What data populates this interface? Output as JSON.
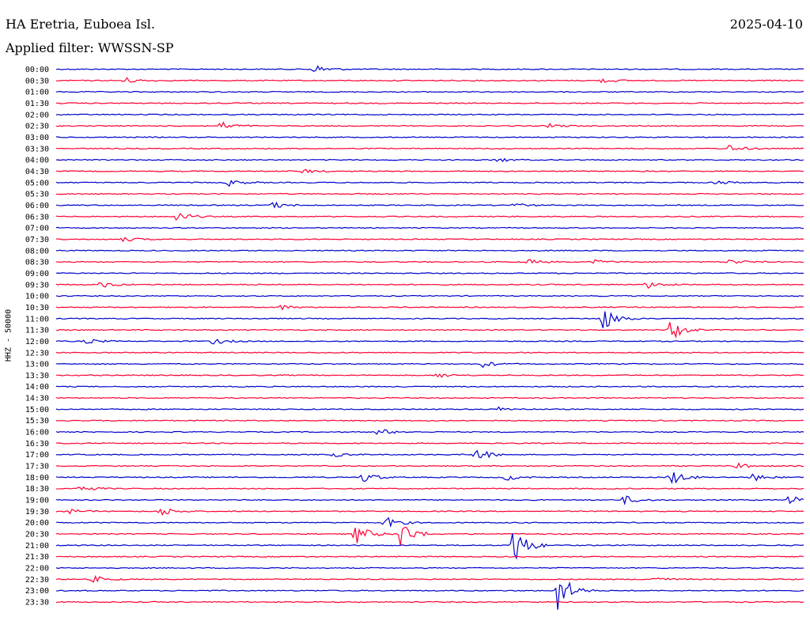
{
  "header": {
    "station": "HA Eretria, Euboea Isl.",
    "date": "2025-04-10",
    "filter": "Applied filter: WWSSN-SP"
  },
  "ylabel": "HHZ - 50000",
  "colors": {
    "even": "#0000cc",
    "odd": "#ff0033",
    "background": "#ffffff"
  },
  "rows": [
    {
      "time": "00:00",
      "events": [
        {
          "t": 0.34,
          "a": 0.25
        },
        {
          "t": 0.35,
          "a": 0.2
        }
      ]
    },
    {
      "time": "00:30",
      "events": [
        {
          "t": 0.09,
          "a": 0.3
        },
        {
          "t": 0.73,
          "a": 0.2
        }
      ]
    },
    {
      "time": "01:00",
      "events": []
    },
    {
      "time": "01:30",
      "events": []
    },
    {
      "time": "02:00",
      "events": []
    },
    {
      "time": "02:30",
      "events": [
        {
          "t": 0.22,
          "a": 0.35
        },
        {
          "t": 0.66,
          "a": 0.2
        }
      ]
    },
    {
      "time": "03:00",
      "events": []
    },
    {
      "time": "03:30",
      "events": [
        {
          "t": 0.9,
          "a": 0.3
        }
      ]
    },
    {
      "time": "04:00",
      "events": [
        {
          "t": 0.59,
          "a": 0.2
        }
      ]
    },
    {
      "time": "04:30",
      "events": [
        {
          "t": 0.33,
          "a": 0.2
        }
      ]
    },
    {
      "time": "05:00",
      "events": [
        {
          "t": 0.23,
          "a": 0.3
        },
        {
          "t": 0.88,
          "a": 0.25
        }
      ]
    },
    {
      "time": "05:30",
      "events": []
    },
    {
      "time": "06:00",
      "events": [
        {
          "t": 0.29,
          "a": 0.3
        },
        {
          "t": 0.61,
          "a": 0.2
        }
      ]
    },
    {
      "time": "06:30",
      "events": [
        {
          "t": 0.16,
          "a": 0.5
        }
      ]
    },
    {
      "time": "07:00",
      "events": []
    },
    {
      "time": "07:30",
      "events": [
        {
          "t": 0.09,
          "a": 0.2
        }
      ]
    },
    {
      "time": "08:00",
      "events": []
    },
    {
      "time": "08:30",
      "events": [
        {
          "t": 0.63,
          "a": 0.25
        },
        {
          "t": 0.72,
          "a": 0.2
        },
        {
          "t": 0.9,
          "a": 0.25
        }
      ]
    },
    {
      "time": "09:00",
      "events": []
    },
    {
      "time": "09:30",
      "events": [
        {
          "t": 0.06,
          "a": 0.3
        },
        {
          "t": 0.79,
          "a": 0.35
        }
      ]
    },
    {
      "time": "10:00",
      "events": []
    },
    {
      "time": "10:30",
      "events": [
        {
          "t": 0.3,
          "a": 0.2
        }
      ]
    },
    {
      "time": "11:00",
      "events": [
        {
          "t": 0.73,
          "a": 1.2
        }
      ]
    },
    {
      "time": "11:30",
      "events": [
        {
          "t": 0.82,
          "a": 1.1
        }
      ]
    },
    {
      "time": "12:00",
      "events": [
        {
          "t": 0.04,
          "a": 0.25
        },
        {
          "t": 0.21,
          "a": 0.3
        }
      ]
    },
    {
      "time": "12:30",
      "events": []
    },
    {
      "time": "13:00",
      "events": [
        {
          "t": 0.57,
          "a": 0.3
        }
      ]
    },
    {
      "time": "13:30",
      "events": [
        {
          "t": 0.51,
          "a": 0.25
        }
      ]
    },
    {
      "time": "14:00",
      "events": []
    },
    {
      "time": "14:30",
      "events": []
    },
    {
      "time": "15:00",
      "events": [
        {
          "t": 0.59,
          "a": 0.2
        }
      ]
    },
    {
      "time": "15:30",
      "events": []
    },
    {
      "time": "16:00",
      "events": [
        {
          "t": 0.43,
          "a": 0.35
        }
      ]
    },
    {
      "time": "16:30",
      "events": []
    },
    {
      "time": "17:00",
      "events": [
        {
          "t": 0.56,
          "a": 0.65
        },
        {
          "t": 0.37,
          "a": 0.2
        }
      ]
    },
    {
      "time": "17:30",
      "events": [
        {
          "t": 0.91,
          "a": 0.25
        }
      ]
    },
    {
      "time": "18:00",
      "events": [
        {
          "t": 0.41,
          "a": 0.5
        },
        {
          "t": 0.6,
          "a": 0.3
        },
        {
          "t": 0.82,
          "a": 0.8
        },
        {
          "t": 0.93,
          "a": 0.4
        }
      ]
    },
    {
      "time": "18:30",
      "events": [
        {
          "t": 0.03,
          "a": 0.35
        }
      ]
    },
    {
      "time": "19:00",
      "events": [
        {
          "t": 0.76,
          "a": 0.4
        },
        {
          "t": 0.98,
          "a": 0.4
        }
      ]
    },
    {
      "time": "19:30",
      "events": [
        {
          "t": 0.01,
          "a": 0.3
        },
        {
          "t": 0.14,
          "a": 0.45
        }
      ]
    },
    {
      "time": "20:00",
      "events": [
        {
          "t": 0.44,
          "a": 0.55
        }
      ]
    },
    {
      "time": "20:30",
      "events": [
        {
          "t": 0.4,
          "a": 1.0
        },
        {
          "t": 0.46,
          "a": 1.3
        }
      ]
    },
    {
      "time": "21:00",
      "events": [
        {
          "t": 0.61,
          "a": 2.0
        }
      ]
    },
    {
      "time": "21:30",
      "events": []
    },
    {
      "time": "22:00",
      "events": []
    },
    {
      "time": "22:30",
      "events": [
        {
          "t": 0.05,
          "a": 0.3
        },
        {
          "t": 0.8,
          "a": 0.25
        }
      ]
    },
    {
      "time": "23:00",
      "events": [
        {
          "t": 0.67,
          "a": 2.0
        }
      ]
    },
    {
      "time": "23:30",
      "events": []
    }
  ]
}
